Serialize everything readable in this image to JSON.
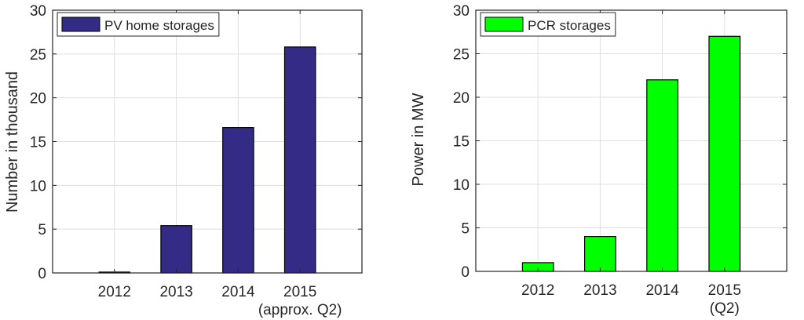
{
  "chart_data": [
    {
      "type": "bar",
      "categories": [
        "2012",
        "2013",
        "2014",
        "2015"
      ],
      "category_sublabels": [
        "",
        "",
        "",
        "(approx. Q2)"
      ],
      "series": [
        {
          "name": "PV home storages",
          "values": [
            0.1,
            5.4,
            16.6,
            25.8
          ]
        }
      ],
      "xlabel": "",
      "ylabel": "Number in thousand",
      "ylim": [
        0,
        30
      ],
      "yticks": [
        0,
        5,
        10,
        15,
        20,
        25,
        30
      ],
      "grid": true,
      "legend_position": "top-left",
      "color": "#332b86"
    },
    {
      "type": "bar",
      "categories": [
        "2012",
        "2013",
        "2014",
        "2015"
      ],
      "category_sublabels": [
        "",
        "",
        "",
        "(Q2)"
      ],
      "series": [
        {
          "name": "PCR storages",
          "values": [
            1,
            4,
            22,
            27
          ]
        }
      ],
      "xlabel": "",
      "ylabel": "Power in MW",
      "ylim": [
        0,
        30
      ],
      "yticks": [
        0,
        5,
        10,
        15,
        20,
        25,
        30
      ],
      "grid": true,
      "legend_position": "top-left",
      "color": "#00ff00"
    }
  ]
}
